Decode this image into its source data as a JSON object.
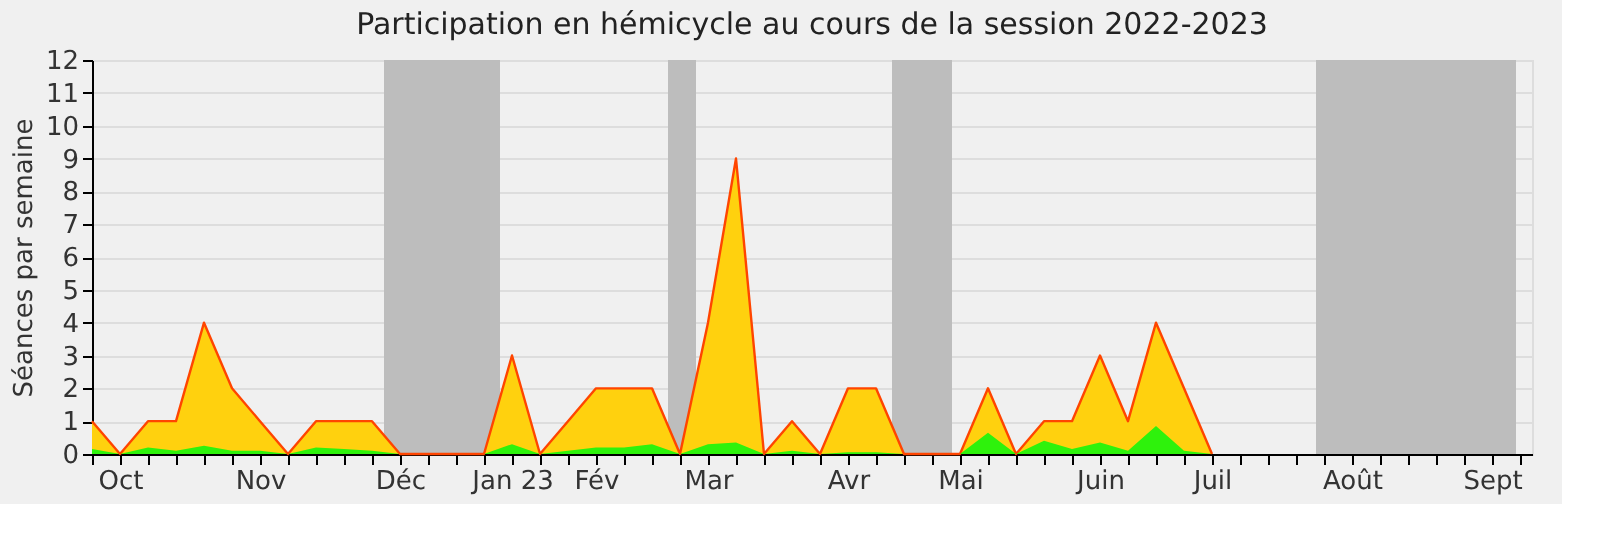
{
  "chart_data": {
    "type": "area",
    "title": "Participation en hémicycle au cours de la session 2022-2023",
    "ylabel": "Séances par semaine",
    "x": [
      "2022-09-28",
      "2022-10-05",
      "2022-10-12",
      "2022-10-19",
      "2022-10-26",
      "2022-11-02",
      "2022-11-09",
      "2022-11-16",
      "2022-11-23",
      "2022-11-30",
      "2022-12-07",
      "2022-12-14",
      "2022-12-21",
      "2022-12-28",
      "2023-01-04",
      "2023-01-11",
      "2023-01-18",
      "2023-01-25",
      "2023-02-01",
      "2023-02-08",
      "2023-02-15",
      "2023-02-22",
      "2023-03-01",
      "2023-03-08",
      "2023-03-15",
      "2023-03-22",
      "2023-03-29",
      "2023-04-05",
      "2023-04-12",
      "2023-04-19",
      "2023-04-26",
      "2023-05-03",
      "2023-05-10",
      "2023-05-17",
      "2023-05-24",
      "2023-05-31",
      "2023-06-07",
      "2023-06-14",
      "2023-06-21",
      "2023-06-28",
      "2023-07-05"
    ],
    "series": [
      {
        "color": "#ffd10e",
        "values": [
          1,
          0,
          1,
          1,
          4,
          2,
          1,
          0,
          1,
          1,
          1,
          0,
          0,
          0,
          0,
          3,
          0,
          1,
          2,
          2,
          2,
          0,
          4,
          9,
          0,
          1,
          0,
          2,
          2,
          0,
          0,
          0,
          2,
          0,
          1,
          1,
          3,
          1,
          4,
          2,
          0
        ]
      },
      {
        "color": "#2ef20c",
        "values": [
          0.15,
          0,
          0.2,
          0.1,
          0.25,
          0.1,
          0.1,
          0,
          0.2,
          0.15,
          0.1,
          0,
          0,
          0,
          0,
          0.3,
          0,
          0.1,
          0.2,
          0.2,
          0.3,
          0,
          0.3,
          0.35,
          0,
          0.1,
          0,
          0.05,
          0.05,
          0,
          0,
          0,
          0.65,
          0,
          0.4,
          0.15,
          0.35,
          0.1,
          0.85,
          0.1,
          0
        ]
      }
    ],
    "xlim": [
      "2022-09-28",
      "2023-09-23"
    ],
    "xticks": [
      {
        "value": "2022-09-28",
        "label": null
      },
      {
        "value": "2022-10-05",
        "label": "Oct"
      },
      {
        "value": "2022-10-12",
        "label": null
      },
      {
        "value": "2022-10-19",
        "label": null
      },
      {
        "value": "2022-10-26",
        "label": null
      },
      {
        "value": "2022-11-02",
        "label": null
      },
      {
        "value": "2022-11-09",
        "label": "Nov"
      },
      {
        "value": "2022-11-16",
        "label": null
      },
      {
        "value": "2022-11-23",
        "label": null
      },
      {
        "value": "2022-11-30",
        "label": null
      },
      {
        "value": "2022-12-07",
        "label": null
      },
      {
        "value": "2022-12-14",
        "label": "Déc"
      },
      {
        "value": "2022-12-21",
        "label": null
      },
      {
        "value": "2022-12-28",
        "label": null
      },
      {
        "value": "2023-01-04",
        "label": null
      },
      {
        "value": "2023-01-11",
        "label": "Jan 23"
      },
      {
        "value": "2023-01-18",
        "label": null
      },
      {
        "value": "2023-01-25",
        "label": null
      },
      {
        "value": "2023-02-01",
        "label": "Fév"
      },
      {
        "value": "2023-02-08",
        "label": null
      },
      {
        "value": "2023-02-15",
        "label": null
      },
      {
        "value": "2023-02-22",
        "label": null
      },
      {
        "value": "2023-03-01",
        "label": "Mar"
      },
      {
        "value": "2023-03-08",
        "label": null
      },
      {
        "value": "2023-03-15",
        "label": null
      },
      {
        "value": "2023-03-22",
        "label": null
      },
      {
        "value": "2023-03-29",
        "label": null
      },
      {
        "value": "2023-04-05",
        "label": "Avr"
      },
      {
        "value": "2023-04-12",
        "label": null
      },
      {
        "value": "2023-04-19",
        "label": null
      },
      {
        "value": "2023-04-26",
        "label": null
      },
      {
        "value": "2023-05-03",
        "label": "Mai"
      },
      {
        "value": "2023-05-10",
        "label": null
      },
      {
        "value": "2023-05-17",
        "label": null
      },
      {
        "value": "2023-05-24",
        "label": null
      },
      {
        "value": "2023-05-31",
        "label": null
      },
      {
        "value": "2023-06-07",
        "label": "Juin"
      },
      {
        "value": "2023-06-14",
        "label": null
      },
      {
        "value": "2023-06-21",
        "label": null
      },
      {
        "value": "2023-06-28",
        "label": null
      },
      {
        "value": "2023-07-05",
        "label": "Juil"
      },
      {
        "value": "2023-07-12",
        "label": null
      },
      {
        "value": "2023-07-19",
        "label": null
      },
      {
        "value": "2023-07-26",
        "label": null
      },
      {
        "value": "2023-08-02",
        "label": null
      },
      {
        "value": "2023-08-09",
        "label": "Août"
      },
      {
        "value": "2023-08-16",
        "label": null
      },
      {
        "value": "2023-08-23",
        "label": null
      },
      {
        "value": "2023-08-30",
        "label": null
      },
      {
        "value": "2023-09-06",
        "label": null
      },
      {
        "value": "2023-09-13",
        "label": "Sept"
      },
      {
        "value": "2023-09-20",
        "label": null
      }
    ],
    "ylim": [
      0,
      12
    ],
    "yticks": [
      0,
      1,
      2,
      3,
      4,
      5,
      6,
      7,
      8,
      9,
      10,
      11,
      12
    ],
    "bands": [
      {
        "axis": "x",
        "from": "2022-12-10",
        "to": "2023-01-08",
        "color": "#bdbdbd"
      },
      {
        "axis": "x",
        "from": "2023-02-19",
        "to": "2023-02-26",
        "color": "#bdbdbd"
      },
      {
        "axis": "x",
        "from": "2023-04-16",
        "to": "2023-05-01",
        "color": "#bdbdbd"
      },
      {
        "axis": "x",
        "from": "2023-07-31",
        "to": "2023-09-19",
        "color": "#bdbdbd"
      }
    ],
    "grid": "y"
  }
}
